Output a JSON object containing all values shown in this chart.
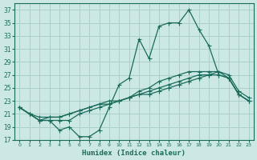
{
  "xlabel": "Humidex (Indice chaleur)",
  "bg_color": "#cce8e5",
  "grid_color": "#aacfcc",
  "line_color": "#1a6b5a",
  "xlim": [
    -0.5,
    23.5
  ],
  "ylim": [
    17,
    38
  ],
  "yticks": [
    17,
    19,
    21,
    23,
    25,
    27,
    29,
    31,
    33,
    35,
    37
  ],
  "xticks": [
    0,
    1,
    2,
    3,
    4,
    5,
    6,
    7,
    8,
    9,
    10,
    11,
    12,
    13,
    14,
    15,
    16,
    17,
    18,
    19,
    20,
    21,
    22,
    23
  ],
  "line1_x": [
    0,
    1,
    2,
    3,
    4,
    5,
    6,
    7,
    8,
    9,
    10,
    11,
    12,
    13,
    14,
    15,
    16,
    17,
    18,
    19,
    20,
    21,
    22,
    23
  ],
  "line1_y": [
    22.0,
    21.0,
    20.0,
    20.0,
    18.5,
    19.0,
    17.5,
    17.5,
    18.5,
    22.0,
    25.5,
    26.5,
    32.5,
    29.5,
    34.5,
    35.0,
    35.0,
    37.0,
    34.0,
    31.5,
    27.0,
    26.5,
    24.0,
    23.0
  ],
  "line2_x": [
    0,
    1,
    2,
    3,
    4,
    5,
    6,
    7,
    8,
    9,
    10,
    11,
    12,
    13,
    14,
    15,
    16,
    17,
    18,
    19,
    20,
    21,
    22,
    23
  ],
  "line2_y": [
    22.0,
    21.0,
    20.0,
    20.0,
    20.0,
    20.0,
    21.0,
    21.5,
    22.0,
    22.5,
    23.0,
    23.5,
    24.5,
    25.0,
    26.0,
    26.5,
    27.0,
    27.5,
    27.5,
    27.5,
    27.5,
    26.5,
    24.0,
    23.0
  ],
  "line3_x": [
    0,
    1,
    2,
    3,
    4,
    5,
    6,
    7,
    8,
    9,
    10,
    11,
    12,
    13,
    14,
    15,
    16,
    17,
    18,
    19,
    20,
    21,
    22,
    23
  ],
  "line3_y": [
    22.0,
    21.0,
    20.0,
    20.5,
    20.5,
    21.0,
    21.5,
    22.0,
    22.5,
    22.5,
    23.0,
    23.5,
    24.0,
    24.5,
    25.0,
    25.5,
    26.0,
    26.5,
    27.0,
    27.0,
    27.0,
    26.5,
    24.0,
    23.0
  ],
  "line4_x": [
    0,
    1,
    2,
    3,
    4,
    5,
    6,
    7,
    8,
    9,
    10,
    11,
    12,
    13,
    14,
    15,
    16,
    17,
    18,
    19,
    20,
    21,
    22,
    23
  ],
  "line4_y": [
    22.0,
    21.0,
    20.5,
    20.5,
    20.5,
    21.0,
    21.5,
    22.0,
    22.5,
    23.0,
    23.0,
    23.5,
    24.0,
    24.0,
    24.5,
    25.0,
    25.5,
    26.0,
    26.5,
    27.0,
    27.5,
    27.0,
    24.5,
    23.5
  ]
}
